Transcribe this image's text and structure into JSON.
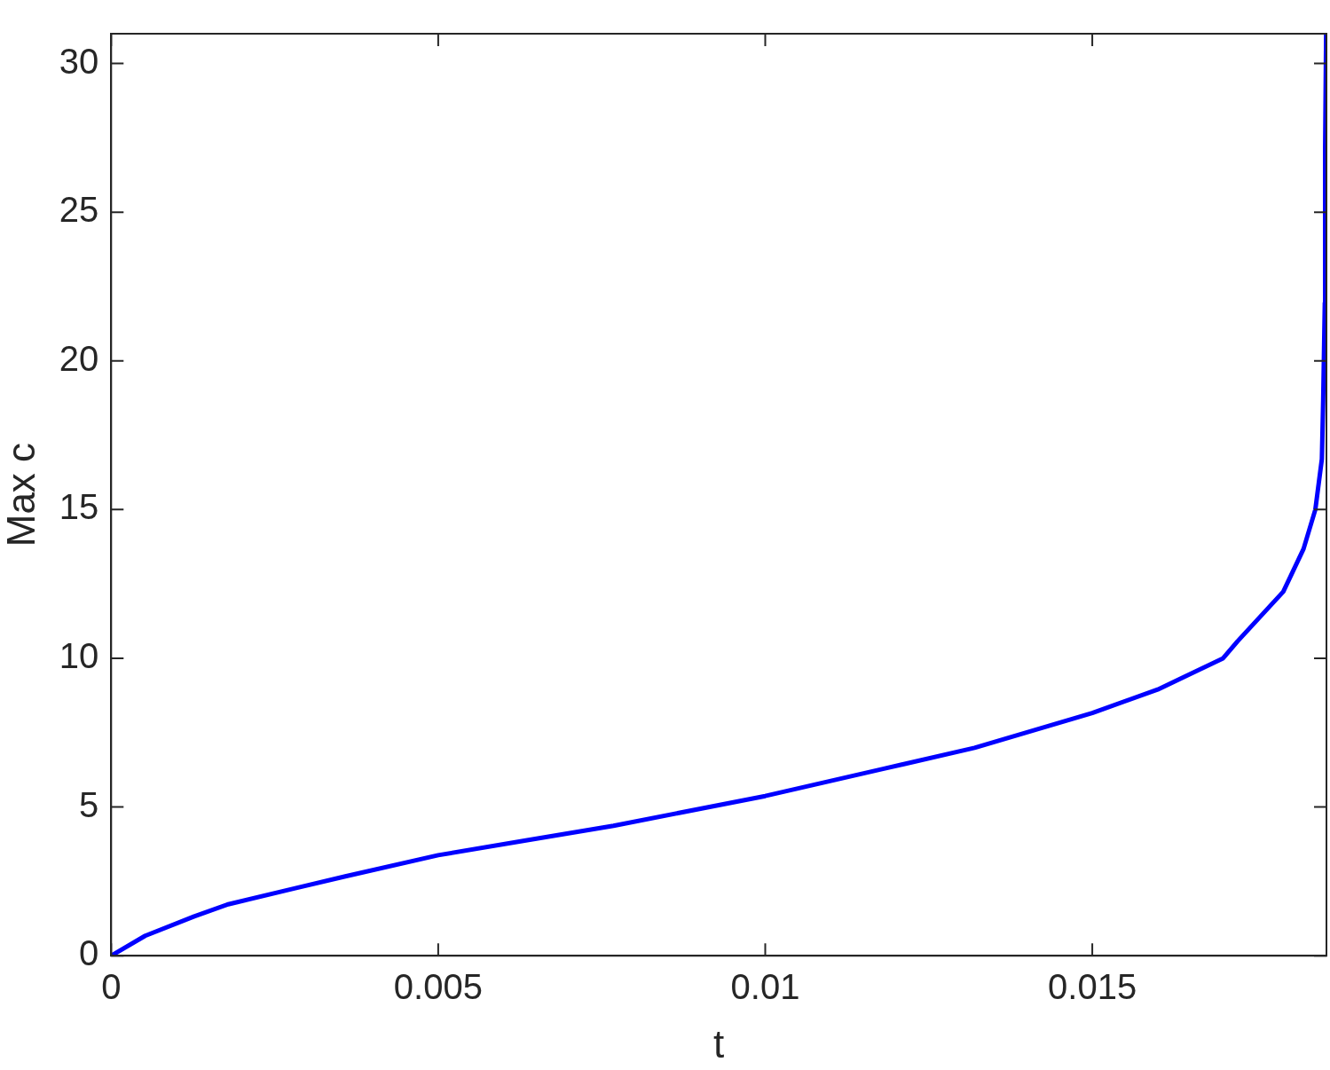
{
  "chart_data": {
    "type": "line",
    "xlabel": "t",
    "ylabel": "Max c",
    "x": [
      0,
      0.00052,
      0.00127,
      0.00179,
      0.0028,
      0.00358,
      0.005,
      0.00632,
      0.00768,
      0.01,
      0.0118,
      0.0132,
      0.015,
      0.016,
      0.017,
      0.01722,
      0.01792,
      0.01823,
      0.01841,
      0.01851,
      0.01853,
      0.018555,
      0.01856,
      0.018575
    ],
    "series": [
      {
        "color": "#0000ff",
        "values": [
          0,
          0.67,
          1.32,
          1.73,
          2.26,
          2.67,
          3.38,
          3.87,
          4.37,
          5.37,
          6.28,
          6.99,
          8.16,
          8.95,
          10.0,
          10.57,
          12.24,
          13.68,
          15.0,
          16.7,
          18.67,
          21.95,
          27.2,
          31
        ]
      }
    ],
    "xlim": [
      0,
      0.01858
    ],
    "ylim": [
      0,
      31
    ],
    "xticks": [
      0,
      0.005,
      0.01,
      0.015
    ],
    "yticks": [
      0,
      5,
      10,
      15,
      20,
      25,
      30
    ],
    "grid": false,
    "legend": false,
    "marker": "none",
    "line_style": "solid"
  }
}
